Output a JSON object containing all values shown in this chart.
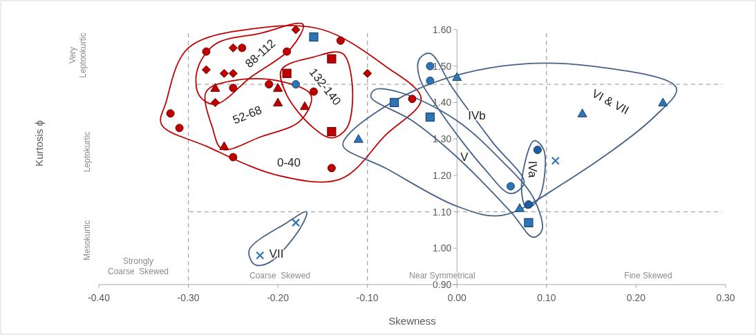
{
  "chart_data": {
    "type": "scatter",
    "xlabel": "Skewness",
    "ylabel": "Kurtosis ϕ",
    "xlim": [
      -0.4,
      0.3
    ],
    "xticks": [
      {
        "value": -0.4,
        "label": "-0.40"
      },
      {
        "value": -0.3,
        "label": "-0.30"
      },
      {
        "value": -0.2,
        "label": "-0.20"
      },
      {
        "value": -0.1,
        "label": "-0.10"
      },
      {
        "value": 0,
        "label": "0.00"
      },
      {
        "value": 0.1,
        "label": "0.10"
      },
      {
        "value": 0.2,
        "label": "0.20"
      },
      {
        "value": 0.3,
        "label": "0.30"
      }
    ],
    "ylim": [
      0.9,
      1.6
    ],
    "yticks": [
      {
        "value": 0.9,
        "label": "0.90"
      },
      {
        "value": 1.0,
        "label": "1.00"
      },
      {
        "value": 1.1,
        "label": "1.10"
      },
      {
        "value": 1.2,
        "label": "1.20"
      },
      {
        "value": 1.3,
        "label": "1.30"
      },
      {
        "value": 1.4,
        "label": "1.40"
      },
      {
        "value": 1.5,
        "label": "1.50"
      },
      {
        "value": 1.6,
        "label": "1.60"
      }
    ],
    "grid": false,
    "ref_lines": [
      {
        "axis": "x",
        "value": -0.3,
        "color": "#a6a6a6",
        "line_style": "dashed"
      },
      {
        "axis": "x",
        "value": -0.1,
        "color": "#a6a6a6",
        "line_style": "dashed"
      },
      {
        "axis": "x",
        "value": 0.1,
        "color": "#a6a6a6",
        "line_style": "dashed"
      },
      {
        "axis": "y",
        "value": 1.45,
        "color": "#a6a6a6",
        "line_style": "dashed"
      },
      {
        "axis": "y",
        "value": 1.1,
        "color": "#a6a6a6",
        "line_style": "dashed"
      }
    ],
    "annotations": [
      "Very Leptookurtic",
      "Leptokurtic",
      "Mesokurtic",
      "Strongly Coarse  Skewed",
      "Coarse  Skewed",
      "Near Symmetrical",
      "Fine Skewed",
      "88-112",
      "132-140",
      "52-68",
      "0-40",
      "IVb",
      "V",
      "IVa",
      "VI & VII",
      "VII"
    ],
    "series": [
      {
        "marker": "circle",
        "color": "#c00000",
        "x": [
          -0.28,
          -0.24,
          -0.19,
          -0.13,
          -0.25,
          -0.21,
          -0.16,
          -0.32,
          -0.31,
          -0.25,
          -0.14,
          -0.05
        ],
        "values": [
          1.54,
          1.55,
          1.54,
          1.57,
          1.44,
          1.45,
          1.43,
          1.37,
          1.33,
          1.25,
          1.22,
          1.41
        ]
      },
      {
        "marker": "diamond",
        "color": "#c00000",
        "x": [
          -0.18,
          -0.25,
          -0.28,
          -0.26,
          -0.25,
          -0.27,
          -0.1
        ],
        "values": [
          1.6,
          1.55,
          1.49,
          1.48,
          1.48,
          1.4,
          1.48
        ]
      },
      {
        "marker": "triangle",
        "color": "#c00000",
        "x": [
          -0.27,
          -0.2,
          -0.2,
          -0.17,
          -0.26
        ],
        "values": [
          1.44,
          1.44,
          1.4,
          1.39,
          1.28
        ]
      },
      {
        "marker": "square",
        "color": "#c00000",
        "x": [
          -0.14,
          -0.19,
          -0.14
        ],
        "values": [
          1.52,
          1.48,
          1.32
        ]
      },
      {
        "marker": "circle",
        "color": "#2e75b6",
        "x": [
          -0.18,
          -0.03,
          -0.03,
          0.06
        ],
        "values": [
          1.45,
          1.5,
          1.46,
          1.17
        ]
      },
      {
        "marker": "circle",
        "color": "#1f5fa0",
        "x": [
          0.09,
          0.08
        ],
        "values": [
          1.27,
          1.12
        ]
      },
      {
        "marker": "square",
        "color": "#2e75b6",
        "x": [
          -0.16,
          -0.07,
          -0.03,
          0.08
        ],
        "values": [
          1.58,
          1.4,
          1.36,
          1.07
        ]
      },
      {
        "marker": "triangle",
        "color": "#2e75b6",
        "x": [
          -0.11,
          0.0,
          0.07,
          0.14,
          0.23
        ],
        "values": [
          1.3,
          1.47,
          1.11,
          1.37,
          1.4
        ]
      },
      {
        "marker": "cross",
        "color": "#2e75b6",
        "x": [
          -0.18,
          -0.22,
          0.11
        ],
        "values": [
          1.07,
          0.98,
          1.24
        ]
      }
    ]
  }
}
